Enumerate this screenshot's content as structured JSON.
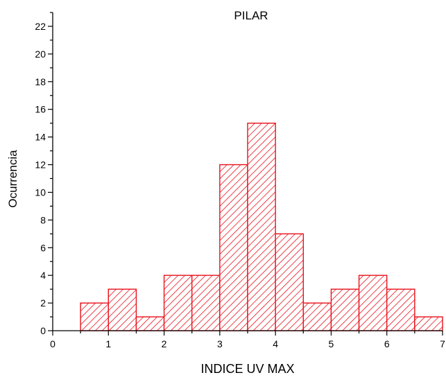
{
  "chart_data": {
    "type": "bar",
    "title": "PILAR",
    "xlabel": "INDICE UV MAX",
    "ylabel": "Ocurrencia",
    "xlim": [
      0,
      7
    ],
    "ylim": [
      0,
      23
    ],
    "xticks": [
      0,
      1,
      2,
      3,
      4,
      5,
      6,
      7
    ],
    "yticks": [
      0,
      2,
      4,
      6,
      8,
      10,
      12,
      14,
      16,
      18,
      20,
      22
    ],
    "bin_width": 0.5,
    "bins": [
      {
        "start": 0.5,
        "end": 1.0,
        "value": 2
      },
      {
        "start": 1.0,
        "end": 1.5,
        "value": 3
      },
      {
        "start": 1.5,
        "end": 2.0,
        "value": 1
      },
      {
        "start": 2.0,
        "end": 2.5,
        "value": 4
      },
      {
        "start": 2.5,
        "end": 3.0,
        "value": 4
      },
      {
        "start": 3.0,
        "end": 3.5,
        "value": 12
      },
      {
        "start": 3.5,
        "end": 4.0,
        "value": 15
      },
      {
        "start": 4.0,
        "end": 4.5,
        "value": 7
      },
      {
        "start": 4.5,
        "end": 5.0,
        "value": 2
      },
      {
        "start": 5.0,
        "end": 5.5,
        "value": 3
      },
      {
        "start": 5.5,
        "end": 6.0,
        "value": 4
      },
      {
        "start": 6.0,
        "end": 6.5,
        "value": 3
      },
      {
        "start": 6.5,
        "end": 7.0,
        "value": 1
      }
    ],
    "bar_color": "#e8101a",
    "fill_pattern": "diagonal-hatch",
    "grid": false,
    "legend": "none"
  }
}
